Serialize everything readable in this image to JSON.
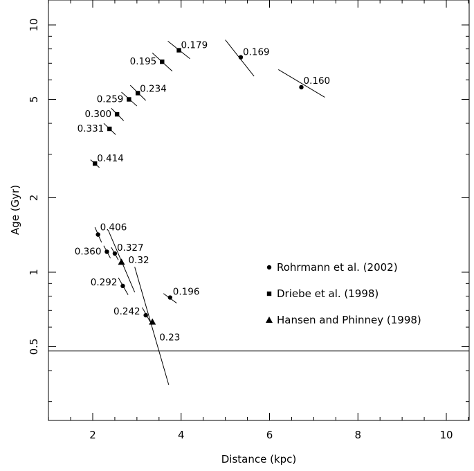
{
  "chart_data": {
    "type": "scatter",
    "xlabel": "Distance (kpc)",
    "ylabel": "Age (Gyr)",
    "xlim": [
      1,
      10.5
    ],
    "ylim": [
      0.2,
      14
    ],
    "y_scale": "log",
    "x_ticks": [
      2,
      4,
      6,
      8,
      10
    ],
    "x_tick_labels": [
      "2",
      "4",
      "6",
      "8",
      "10"
    ],
    "y_ticks": [
      0.5,
      1,
      2,
      5,
      10
    ],
    "y_tick_labels": [
      "0.5",
      "1",
      "2",
      "5",
      "10"
    ],
    "hline": 0.48,
    "grid": false,
    "legend_position": "right",
    "series": [
      {
        "name": "Rohrmann et al. (2002)",
        "marker": "circle",
        "points": [
          {
            "x": 2.12,
            "y": 1.42,
            "label": "0.406",
            "seg": [
              2.05,
              1.52,
              2.2,
              1.32
            ]
          },
          {
            "x": 2.32,
            "y": 1.21,
            "label": "0.360",
            "seg": [
              2.25,
              1.28,
              2.4,
              1.14
            ]
          },
          {
            "x": 2.5,
            "y": 1.19,
            "label": "0.327",
            "seg": [
              2.42,
              1.26,
              2.58,
              1.12
            ]
          },
          {
            "x": 2.68,
            "y": 0.88,
            "label": "0.292",
            "seg": [
              2.58,
              0.95,
              2.8,
              0.81
            ]
          },
          {
            "x": 3.2,
            "y": 0.67,
            "label": "0.242",
            "seg": [
              3.12,
              0.72,
              3.3,
              0.63
            ]
          },
          {
            "x": 3.75,
            "y": 0.79,
            "label": "0.196",
            "seg": [
              3.6,
              0.82,
              3.9,
              0.75
            ]
          },
          {
            "x": 5.35,
            "y": 7.4,
            "label": "0.169",
            "seg": [
              5.0,
              8.7,
              5.65,
              6.2
            ]
          },
          {
            "x": 6.72,
            "y": 5.6,
            "label": "0.160",
            "seg": [
              6.2,
              6.6,
              7.25,
              5.1
            ]
          }
        ]
      },
      {
        "name": "Driebe et al. (1998)",
        "marker": "square",
        "points": [
          {
            "x": 3.95,
            "y": 7.9,
            "label": "0.179",
            "seg": [
              3.7,
              8.6,
              4.2,
              7.3
            ]
          },
          {
            "x": 3.57,
            "y": 7.1,
            "label": "0.195",
            "seg": [
              3.35,
              7.7,
              3.8,
              6.5
            ]
          },
          {
            "x": 3.02,
            "y": 5.3,
            "label": "0.234",
            "seg": [
              2.85,
              5.7,
              3.2,
              4.95
            ]
          },
          {
            "x": 2.82,
            "y": 5.0,
            "label": "0.259",
            "seg": [
              2.65,
              5.35,
              3.0,
              4.7
            ]
          },
          {
            "x": 2.55,
            "y": 4.35,
            "label": "0.300",
            "seg": [
              2.42,
              4.6,
              2.7,
              4.1
            ]
          },
          {
            "x": 2.38,
            "y": 3.8,
            "label": "0.331",
            "seg": [
              2.25,
              4.0,
              2.52,
              3.6
            ]
          },
          {
            "x": 2.05,
            "y": 2.75,
            "label": "0.414",
            "seg": [
              1.95,
              2.85,
              2.15,
              2.65
            ]
          }
        ]
      },
      {
        "name": "Hansen and Phinney (1998)",
        "marker": "triangle",
        "points": [
          {
            "x": 2.65,
            "y": 1.1,
            "label": "0.32",
            "seg": [
              2.35,
              1.48,
              2.95,
              0.83
            ]
          },
          {
            "x": 3.35,
            "y": 0.63,
            "label": "0.23",
            "seg": [
              2.95,
              1.05,
              3.72,
              0.35
            ]
          }
        ]
      }
    ]
  }
}
